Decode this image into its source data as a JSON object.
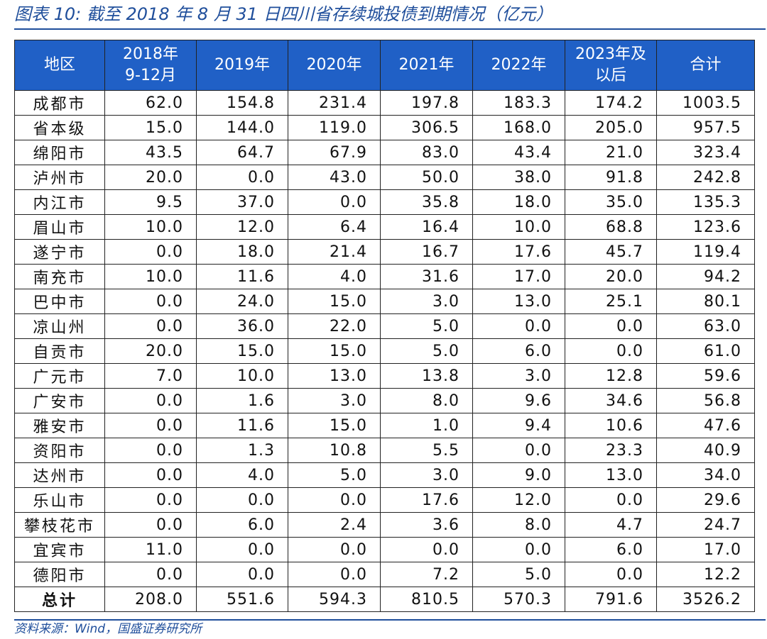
{
  "title": "图表 10: 截至 2018 年 8 月 31 日四川省存续城投债到期情况（亿元）",
  "headers": [
    "地区",
    "2018年\n9-12月",
    "2019年",
    "2020年",
    "2021年",
    "2022年",
    "2023年及\n以后",
    "合计"
  ],
  "rows": [
    [
      "成都市",
      "62.0",
      "154.8",
      "231.4",
      "197.8",
      "183.3",
      "174.2",
      "1003.5"
    ],
    [
      "省本级",
      "15.0",
      "144.0",
      "119.0",
      "306.5",
      "168.0",
      "205.0",
      "957.5"
    ],
    [
      "绵阳市",
      "43.5",
      "64.7",
      "67.9",
      "83.0",
      "43.4",
      "21.0",
      "323.4"
    ],
    [
      "泸州市",
      "20.0",
      "0.0",
      "43.0",
      "50.0",
      "38.0",
      "91.8",
      "242.8"
    ],
    [
      "内江市",
      "9.5",
      "37.0",
      "0.0",
      "35.8",
      "18.0",
      "35.0",
      "135.3"
    ],
    [
      "眉山市",
      "10.0",
      "12.0",
      "6.4",
      "16.4",
      "10.0",
      "68.8",
      "123.6"
    ],
    [
      "遂宁市",
      "0.0",
      "18.0",
      "21.4",
      "16.7",
      "17.6",
      "45.7",
      "119.4"
    ],
    [
      "南充市",
      "10.0",
      "11.6",
      "4.0",
      "31.6",
      "17.0",
      "20.0",
      "94.2"
    ],
    [
      "巴中市",
      "0.0",
      "24.0",
      "15.0",
      "3.0",
      "13.0",
      "25.1",
      "80.1"
    ],
    [
      "凉山州",
      "0.0",
      "36.0",
      "22.0",
      "5.0",
      "0.0",
      "0.0",
      "63.0"
    ],
    [
      "自贡市",
      "20.0",
      "15.0",
      "15.0",
      "5.0",
      "6.0",
      "0.0",
      "61.0"
    ],
    [
      "广元市",
      "7.0",
      "10.0",
      "13.0",
      "13.8",
      "3.0",
      "12.8",
      "59.6"
    ],
    [
      "广安市",
      "0.0",
      "1.6",
      "3.0",
      "8.0",
      "9.6",
      "34.6",
      "56.8"
    ],
    [
      "雅安市",
      "0.0",
      "11.6",
      "15.0",
      "1.0",
      "9.4",
      "10.6",
      "47.6"
    ],
    [
      "资阳市",
      "0.0",
      "1.3",
      "10.8",
      "5.5",
      "0.0",
      "23.3",
      "40.9"
    ],
    [
      "达州市",
      "0.0",
      "4.0",
      "5.0",
      "3.0",
      "9.0",
      "13.0",
      "34.0"
    ],
    [
      "乐山市",
      "0.0",
      "0.0",
      "0.0",
      "17.6",
      "12.0",
      "0.0",
      "29.6"
    ],
    [
      "攀枝花市",
      "0.0",
      "6.0",
      "2.4",
      "3.6",
      "8.0",
      "4.7",
      "24.7"
    ],
    [
      "宜宾市",
      "11.0",
      "0.0",
      "0.0",
      "0.0",
      "0.0",
      "6.0",
      "17.0"
    ],
    [
      "德阳市",
      "0.0",
      "0.0",
      "0.0",
      "7.2",
      "5.0",
      "0.0",
      "12.2"
    ]
  ],
  "total_row": [
    "总计",
    "208.0",
    "551.6",
    "594.3",
    "810.5",
    "570.3",
    "791.6",
    "3526.2"
  ],
  "source": "资料来源：Wind，国盛证券研究所",
  "colors": {
    "accent": "#1F4E9B",
    "header_bg": "#2060C6",
    "header_text": "#FFFFFF"
  }
}
